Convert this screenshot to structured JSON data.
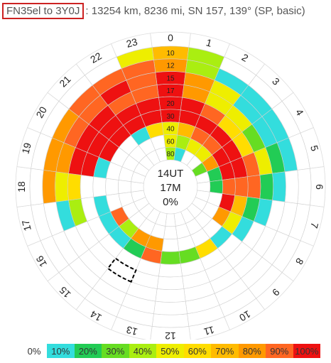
{
  "header": {
    "path_label": "FN35el to 3Y0J",
    "details": ": 13254 km, 8236 mi, SN 157, 139° (SP, basic)"
  },
  "legend": {
    "zero_label": "0%",
    "items": [
      {
        "label": "10%",
        "color": "#33dddd"
      },
      {
        "label": "20%",
        "color": "#22cc55"
      },
      {
        "label": "30%",
        "color": "#66dd22"
      },
      {
        "label": "40%",
        "color": "#aaee11"
      },
      {
        "label": "50%",
        "color": "#eeee00"
      },
      {
        "label": "60%",
        "color": "#ffdd00"
      },
      {
        "label": "70%",
        "color": "#ffbb00"
      },
      {
        "label": "80%",
        "color": "#ff9900"
      },
      {
        "label": "90%",
        "color": "#ff6622"
      },
      {
        "label": "100%",
        "color": "#ee1111"
      }
    ]
  },
  "chart_data": {
    "type": "heatmap",
    "center_lines": [
      "14UT",
      "17M",
      "0%"
    ],
    "hours": [
      "0",
      "1",
      "2",
      "3",
      "4",
      "5",
      "6",
      "7",
      "8",
      "9",
      "10",
      "11",
      "12",
      "13",
      "14",
      "15",
      "16",
      "17",
      "18",
      "19",
      "20",
      "21",
      "22",
      "23"
    ],
    "bands": [
      "10",
      "12",
      "15",
      "17",
      "20",
      "30",
      "40",
      "60",
      "80"
    ],
    "color_scale": [
      "#ffffff",
      "#33dddd",
      "#22cc55",
      "#66dd22",
      "#aaee11",
      "#eeee00",
      "#ffdd00",
      "#ffbb00",
      "#ff9900",
      "#ff6622",
      "#ee1111"
    ],
    "current_hour": "14",
    "current_band": "17",
    "reliability_levels": [
      [
        7,
        4,
        0,
        0,
        0,
        0,
        0,
        0,
        0,
        0,
        0,
        0,
        0,
        0,
        0,
        0,
        0,
        0,
        0,
        0,
        0,
        0,
        0,
        5
      ],
      [
        8,
        4,
        1,
        1,
        1,
        1,
        0,
        0,
        0,
        0,
        0,
        0,
        0,
        0,
        0,
        0,
        0,
        0,
        8,
        8,
        8,
        9,
        9,
        9
      ],
      [
        10,
        8,
        5,
        1,
        1,
        2,
        1,
        0,
        0,
        0,
        0,
        0,
        0,
        0,
        0,
        0,
        0,
        1,
        5,
        8,
        9,
        9,
        10,
        9
      ],
      [
        10,
        8,
        5,
        5,
        3,
        5,
        2,
        1,
        0,
        0,
        0,
        0,
        0,
        0,
        0,
        0,
        0,
        4,
        6,
        10,
        10,
        10,
        9,
        9
      ],
      [
        10,
        10,
        9,
        6,
        6,
        9,
        9,
        2,
        1,
        0,
        0,
        0,
        0,
        0,
        0,
        0,
        0,
        0,
        0,
        10,
        10,
        10,
        10,
        10
      ],
      [
        10,
        10,
        10,
        10,
        10,
        10,
        9,
        7,
        5,
        1,
        6,
        3,
        3,
        9,
        2,
        1,
        1,
        1,
        0,
        1,
        10,
        10,
        10,
        10
      ],
      [
        5,
        7,
        9,
        9,
        10,
        10,
        9,
        10,
        8,
        0,
        0,
        0,
        0,
        8,
        8,
        4,
        9,
        0,
        0,
        0,
        0,
        0,
        1,
        6
      ],
      [
        5,
        4,
        5,
        5,
        8,
        2,
        2,
        0,
        0,
        0,
        0,
        0,
        0,
        0,
        0,
        0,
        0,
        0,
        0,
        0,
        0,
        0,
        0,
        0
      ],
      [
        4,
        1,
        0,
        0,
        3,
        0,
        0,
        0,
        0,
        0,
        0,
        0,
        0,
        0,
        0,
        0,
        0,
        0,
        0,
        0,
        0,
        0,
        0,
        0
      ]
    ]
  }
}
